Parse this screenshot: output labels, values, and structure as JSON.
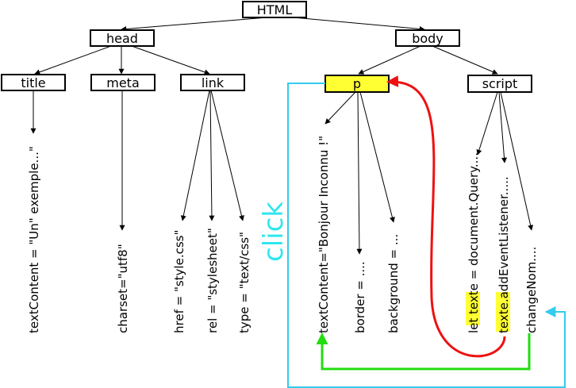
{
  "nodes": {
    "html": "HTML",
    "head": "head",
    "body": "body",
    "title": "title",
    "meta": "meta",
    "link": "link",
    "p": "p",
    "script": "script"
  },
  "leaves": {
    "title_text": "textContent = \"Un\" exemple...\"",
    "meta_charset": "charset=\"utf8\"",
    "link_href": "href = \"style.css\"",
    "link_rel": "rel = \"stylesheet\"",
    "link_type": "type = \"text/css\"",
    "p_text": "textContent=\"Bonjour Inconnu !\"",
    "p_border": "border = ....",
    "p_background": "background = ...",
    "script_let_prefix": "let ",
    "script_let_var": "texte",
    "script_let_rest": " = document.Query....",
    "script_texte_var": "texte",
    "script_texte_rest": ".addEventListener.....",
    "script_change": "changeNom...."
  },
  "annotations": {
    "click": "click"
  },
  "colors": {
    "highlight": "#ffff33",
    "click_arrow": "#33ccee",
    "ref_arrow": "#ee1111",
    "update_arrow": "#22dd11"
  }
}
